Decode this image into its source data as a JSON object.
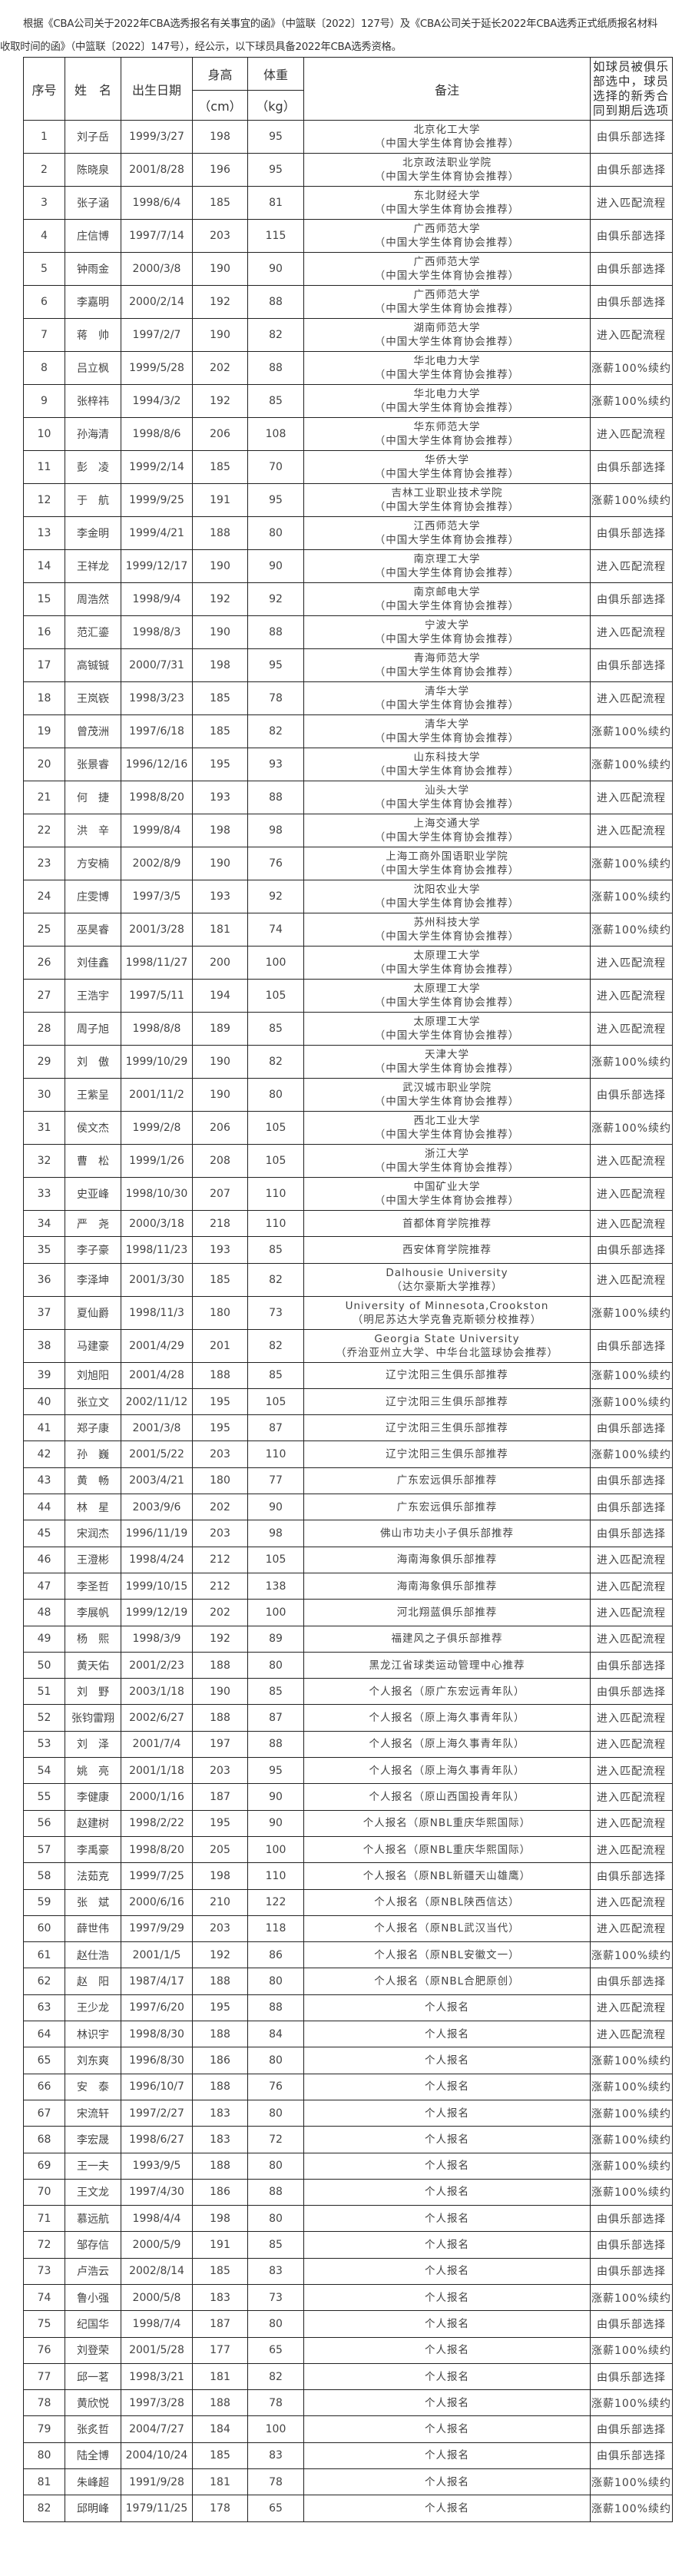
{
  "intro": "根据《CBA公司关于2022年CBA选秀报名有关事宜的函》（中篮联〔2022〕127号）及《CBA公司关于延长2022年CBA选秀正式纸质报名材料收取时间的函》（中篮联〔2022〕147号），经公示，以下球员具备2022年CBA选秀资格。",
  "header": {
    "no": "序号",
    "name": "姓　名",
    "dob": "出生日期",
    "height": "身高",
    "height_unit": "（cm）",
    "weight": "体重",
    "weight_unit": "（kg）",
    "note": "备注",
    "option": "如球员被俱乐部选中，球员选择的新秀合同到期后选项"
  },
  "rows": [
    [
      "1",
      "刘子岳",
      "1999/3/27",
      "198",
      "95",
      "北京化工大学",
      "（中国大学生体育协会推荐）",
      "由俱乐部选择"
    ],
    [
      "2",
      "陈晓泉",
      "2001/8/28",
      "196",
      "95",
      "北京政法职业学院",
      "（中国大学生体育协会推荐）",
      "由俱乐部选择"
    ],
    [
      "3",
      "张子涵",
      "1998/6/4",
      "185",
      "81",
      "东北财经大学",
      "（中国大学生体育协会推荐）",
      "进入匹配流程"
    ],
    [
      "4",
      "庄信博",
      "1997/7/14",
      "203",
      "115",
      "广西师范大学",
      "（中国大学生体育协会推荐）",
      "由俱乐部选择"
    ],
    [
      "5",
      "钟雨金",
      "2000/3/8",
      "190",
      "90",
      "广西师范大学",
      "（中国大学生体育协会推荐）",
      "由俱乐部选择"
    ],
    [
      "6",
      "李嘉明",
      "2000/2/14",
      "192",
      "88",
      "广西师范大学",
      "（中国大学生体育协会推荐）",
      "由俱乐部选择"
    ],
    [
      "7",
      "蒋　帅",
      "1997/2/7",
      "190",
      "82",
      "湖南师范大学",
      "（中国大学生体育协会推荐）",
      "进入匹配流程"
    ],
    [
      "8",
      "吕立枫",
      "1999/5/28",
      "202",
      "88",
      "华北电力大学",
      "（中国大学生体育协会推荐）",
      "涨薪100%续约"
    ],
    [
      "9",
      "张梓祎",
      "1994/3/2",
      "192",
      "85",
      "华北电力大学",
      "（中国大学生体育协会推荐）",
      "涨薪100%续约"
    ],
    [
      "10",
      "孙海清",
      "1998/8/6",
      "206",
      "108",
      "华东师范大学",
      "（中国大学生体育协会推荐）",
      "进入匹配流程"
    ],
    [
      "11",
      "彭　凌",
      "1999/2/14",
      "185",
      "70",
      "华侨大学",
      "（中国大学生体育协会推荐）",
      "由俱乐部选择"
    ],
    [
      "12",
      "于　航",
      "1999/9/25",
      "191",
      "95",
      "吉林工业职业技术学院",
      "（中国大学生体育协会推荐）",
      "涨薪100%续约"
    ],
    [
      "13",
      "李金明",
      "1999/4/21",
      "188",
      "80",
      "江西师范大学",
      "（中国大学生体育协会推荐）",
      "由俱乐部选择"
    ],
    [
      "14",
      "王祥龙",
      "1999/12/17",
      "190",
      "90",
      "南京理工大学",
      "（中国大学生体育协会推荐）",
      "进入匹配流程"
    ],
    [
      "15",
      "周浩然",
      "1998/9/4",
      "192",
      "92",
      "南京邮电大学",
      "（中国大学生体育协会推荐）",
      "由俱乐部选择"
    ],
    [
      "16",
      "范汇鎏",
      "1998/8/3",
      "190",
      "88",
      "宁波大学",
      "（中国大学生体育协会推荐）",
      "进入匹配流程"
    ],
    [
      "17",
      "高铖铖",
      "2000/7/31",
      "198",
      "95",
      "青海师范大学",
      "（中国大学生体育协会推荐）",
      "由俱乐部选择"
    ],
    [
      "18",
      "王岚嵚",
      "1998/3/23",
      "185",
      "78",
      "清华大学",
      "（中国大学生体育协会推荐）",
      "进入匹配流程"
    ],
    [
      "19",
      "曾茂洲",
      "1997/6/18",
      "185",
      "82",
      "清华大学",
      "（中国大学生体育协会推荐）",
      "涨薪100%续约"
    ],
    [
      "20",
      "张景睿",
      "1996/12/16",
      "195",
      "93",
      "山东科技大学",
      "（中国大学生体育协会推荐）",
      "涨薪100%续约"
    ],
    [
      "21",
      "何　捷",
      "1998/8/20",
      "193",
      "88",
      "汕头大学",
      "（中国大学生体育协会推荐）",
      "进入匹配流程"
    ],
    [
      "22",
      "洪　辛",
      "1999/8/4",
      "198",
      "98",
      "上海交通大学",
      "（中国大学生体育协会推荐）",
      "进入匹配流程"
    ],
    [
      "23",
      "方安楠",
      "2002/8/9",
      "190",
      "76",
      "上海工商外国语职业学院",
      "（中国大学生体育协会推荐）",
      "涨薪100%续约"
    ],
    [
      "24",
      "庄雯博",
      "1997/3/5",
      "193",
      "92",
      "沈阳农业大学",
      "（中国大学生体育协会推荐）",
      "涨薪100%续约"
    ],
    [
      "25",
      "巫昊睿",
      "2001/3/28",
      "181",
      "74",
      "苏州科技大学",
      "（中国大学生体育协会推荐）",
      "涨薪100%续约"
    ],
    [
      "26",
      "刘佳鑫",
      "1998/11/27",
      "200",
      "100",
      "太原理工大学",
      "（中国大学生体育协会推荐）",
      "进入匹配流程"
    ],
    [
      "27",
      "王浩宇",
      "1997/5/11",
      "194",
      "105",
      "太原理工大学",
      "（中国大学生体育协会推荐）",
      "进入匹配流程"
    ],
    [
      "28",
      "周子旭",
      "1998/8/8",
      "189",
      "85",
      "太原理工大学",
      "（中国大学生体育协会推荐）",
      "进入匹配流程"
    ],
    [
      "29",
      "刘　傲",
      "1999/10/29",
      "190",
      "82",
      "天津大学",
      "（中国大学生体育协会推荐）",
      "涨薪100%续约"
    ],
    [
      "30",
      "王紫呈",
      "2001/11/2",
      "190",
      "80",
      "武汉城市职业学院",
      "（中国大学生体育协会推荐）",
      "由俱乐部选择"
    ],
    [
      "31",
      "侯文杰",
      "1999/2/8",
      "206",
      "105",
      "西北工业大学",
      "（中国大学生体育协会推荐）",
      "涨薪100%续约"
    ],
    [
      "32",
      "曹　松",
      "1999/1/26",
      "208",
      "105",
      "浙江大学",
      "（中国大学生体育协会推荐）",
      "进入匹配流程"
    ],
    [
      "33",
      "史亚峰",
      "1998/10/30",
      "207",
      "110",
      "中国矿业大学",
      "（中国大学生体育协会推荐）",
      "进入匹配流程"
    ],
    [
      "34",
      "严　尧",
      "2000/3/18",
      "218",
      "110",
      "首都体育学院推荐",
      "",
      "进入匹配流程"
    ],
    [
      "35",
      "李子豪",
      "1998/11/23",
      "193",
      "85",
      "西安体育学院推荐",
      "",
      "由俱乐部选择"
    ],
    [
      "36",
      "李泽坤",
      "2001/3/30",
      "185",
      "82",
      "Dalhousie University",
      "（达尔豪斯大学推荐）",
      "进入匹配流程"
    ],
    [
      "37",
      "夏仙爵",
      "1998/11/3",
      "180",
      "73",
      "University of Minnesota,Crookston",
      "（明尼苏达大学克鲁克斯顿分校推荐）",
      "涨薪100%续约"
    ],
    [
      "38",
      "马建豪",
      "2001/4/29",
      "201",
      "82",
      "Georgia State University",
      "（乔治亚州立大学、中华台北篮球协会推荐）",
      "由俱乐部选择"
    ],
    [
      "39",
      "刘旭阳",
      "2001/4/28",
      "188",
      "85",
      "辽宁沈阳三生俱乐部推荐",
      "",
      "涨薪100%续约"
    ],
    [
      "40",
      "张立文",
      "2002/11/12",
      "195",
      "105",
      "辽宁沈阳三生俱乐部推荐",
      "",
      "涨薪100%续约"
    ],
    [
      "41",
      "郑子康",
      "2001/3/8",
      "195",
      "87",
      "辽宁沈阳三生俱乐部推荐",
      "",
      "由俱乐部选择"
    ],
    [
      "42",
      "孙　巍",
      "2001/5/22",
      "203",
      "110",
      "辽宁沈阳三生俱乐部推荐",
      "",
      "涨薪100%续约"
    ],
    [
      "43",
      "黄　畅",
      "2003/4/21",
      "180",
      "77",
      "广东宏远俱乐部推荐",
      "",
      "由俱乐部选择"
    ],
    [
      "44",
      "林　星",
      "2003/9/6",
      "202",
      "90",
      "广东宏远俱乐部推荐",
      "",
      "由俱乐部选择"
    ],
    [
      "45",
      "宋润杰",
      "1996/11/19",
      "203",
      "98",
      "佛山市功夫小子俱乐部推荐",
      "",
      "由俱乐部选择"
    ],
    [
      "46",
      "王澄彬",
      "1998/4/24",
      "212",
      "105",
      "海南海象俱乐部推荐",
      "",
      "进入匹配流程"
    ],
    [
      "47",
      "李圣哲",
      "1999/10/15",
      "212",
      "138",
      "海南海象俱乐部推荐",
      "",
      "进入匹配流程"
    ],
    [
      "48",
      "李展帆",
      "1999/12/19",
      "202",
      "100",
      "河北翔蓝俱乐部推荐",
      "",
      "进入匹配流程"
    ],
    [
      "49",
      "杨　熙",
      "1998/3/9",
      "192",
      "89",
      "福建风之子俱乐部推荐",
      "",
      "进入匹配流程"
    ],
    [
      "50",
      "黄天佑",
      "2001/2/23",
      "188",
      "80",
      "黑龙江省球类运动管理中心推荐",
      "",
      "由俱乐部选择"
    ],
    [
      "51",
      "刘　野",
      "2003/1/18",
      "190",
      "85",
      "个人报名（原广东宏远青年队）",
      "",
      "由俱乐部选择"
    ],
    [
      "52",
      "张钧雷翔",
      "2002/6/27",
      "188",
      "87",
      "个人报名（原上海久事青年队）",
      "",
      "进入匹配流程"
    ],
    [
      "53",
      "刘　泽",
      "2001/7/4",
      "197",
      "88",
      "个人报名（原上海久事青年队）",
      "",
      "进入匹配流程"
    ],
    [
      "54",
      "姚　亮",
      "2001/1/18",
      "203",
      "95",
      "个人报名（原上海久事青年队）",
      "",
      "进入匹配流程"
    ],
    [
      "55",
      "李健康",
      "2000/1/16",
      "187",
      "90",
      "个人报名（原山西国投青年队）",
      "",
      "进入匹配流程"
    ],
    [
      "56",
      "赵建树",
      "1998/2/22",
      "195",
      "90",
      "个人报名（原NBL重庆华熙国际）",
      "",
      "进入匹配流程"
    ],
    [
      "57",
      "李禹豪",
      "1998/8/20",
      "205",
      "100",
      "个人报名（原NBL重庆华熙国际）",
      "",
      "进入匹配流程"
    ],
    [
      "58",
      "法茹克",
      "1999/7/25",
      "198",
      "110",
      "个人报名（原NBL新疆天山雄鹰）",
      "",
      "由俱乐部选择"
    ],
    [
      "59",
      "张　斌",
      "2000/6/16",
      "210",
      "122",
      "个人报名（原NBL陕西信达）",
      "",
      "进入匹配流程"
    ],
    [
      "60",
      "薛世伟",
      "1997/9/29",
      "203",
      "118",
      "个人报名（原NBL武汉当代）",
      "",
      "进入匹配流程"
    ],
    [
      "61",
      "赵仕浩",
      "2001/1/5",
      "192",
      "86",
      "个人报名（原NBL安徽文一）",
      "",
      "涨薪100%续约"
    ],
    [
      "62",
      "赵　阳",
      "1987/4/17",
      "188",
      "80",
      "个人报名（原NBL合肥原创）",
      "",
      "由俱乐部选择"
    ],
    [
      "63",
      "王少龙",
      "1997/6/20",
      "195",
      "88",
      "个人报名",
      "",
      "进入匹配流程"
    ],
    [
      "64",
      "林识宇",
      "1998/8/30",
      "188",
      "84",
      "个人报名",
      "",
      "进入匹配流程"
    ],
    [
      "65",
      "刘东爽",
      "1996/8/30",
      "186",
      "80",
      "个人报名",
      "",
      "涨薪100%续约"
    ],
    [
      "66",
      "安　泰",
      "1996/10/7",
      "188",
      "76",
      "个人报名",
      "",
      "涨薪100%续约"
    ],
    [
      "67",
      "宋流轩",
      "1997/2/27",
      "183",
      "80",
      "个人报名",
      "",
      "涨薪100%续约"
    ],
    [
      "68",
      "李宏晟",
      "1998/6/27",
      "183",
      "72",
      "个人报名",
      "",
      "涨薪100%续约"
    ],
    [
      "69",
      "王一夫",
      "1993/9/5",
      "188",
      "80",
      "个人报名",
      "",
      "涨薪100%续约"
    ],
    [
      "70",
      "王文龙",
      "1997/4/30",
      "186",
      "88",
      "个人报名",
      "",
      "涨薪100%续约"
    ],
    [
      "71",
      "慕远航",
      "1998/4/4",
      "198",
      "80",
      "个人报名",
      "",
      "由俱乐部选择"
    ],
    [
      "72",
      "邹存信",
      "2000/5/9",
      "191",
      "85",
      "个人报名",
      "",
      "由俱乐部选择"
    ],
    [
      "73",
      "卢浩云",
      "2002/8/14",
      "185",
      "83",
      "个人报名",
      "",
      "由俱乐部选择"
    ],
    [
      "74",
      "鲁小强",
      "2000/5/8",
      "183",
      "73",
      "个人报名",
      "",
      "涨薪100%续约"
    ],
    [
      "75",
      "纪国华",
      "1998/7/4",
      "187",
      "80",
      "个人报名",
      "",
      "由俱乐部选择"
    ],
    [
      "76",
      "刘登荣",
      "2001/5/28",
      "177",
      "65",
      "个人报名",
      "",
      "涨薪100%续约"
    ],
    [
      "77",
      "邱一茗",
      "1998/3/21",
      "181",
      "82",
      "个人报名",
      "",
      "由俱乐部选择"
    ],
    [
      "78",
      "黄欣悦",
      "1997/3/28",
      "188",
      "78",
      "个人报名",
      "",
      "涨薪100%续约"
    ],
    [
      "79",
      "张炙哲",
      "2004/7/27",
      "184",
      "100",
      "个人报名",
      "",
      "由俱乐部选择"
    ],
    [
      "80",
      "陆全博",
      "2004/10/24",
      "185",
      "83",
      "个人报名",
      "",
      "由俱乐部选择"
    ],
    [
      "81",
      "朱峰超",
      "1991/9/28",
      "181",
      "78",
      "个人报名",
      "",
      "涨薪100%续约"
    ],
    [
      "82",
      "邱明峰",
      "1979/11/25",
      "178",
      "65",
      "个人报名",
      "",
      "涨薪100%续约"
    ]
  ]
}
